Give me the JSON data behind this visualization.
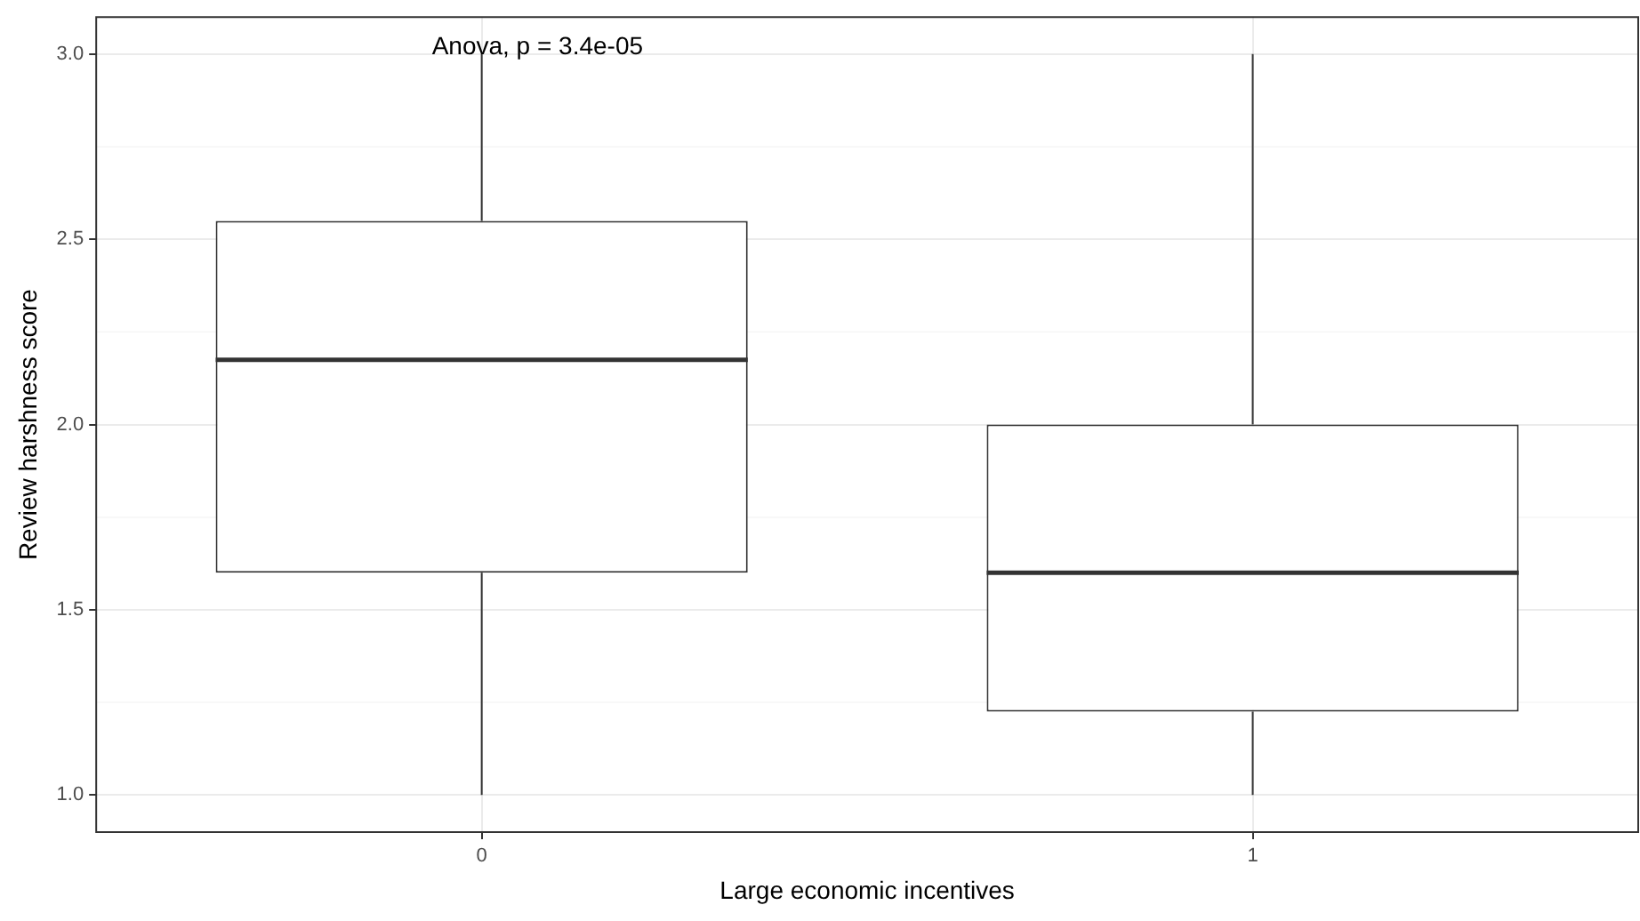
{
  "chart_data": {
    "type": "box",
    "xlabel": "Large economic incentives",
    "ylabel": "Review harshness score",
    "categories": [
      "0",
      "1"
    ],
    "boxes": [
      {
        "low": 1.0,
        "q1": 1.6,
        "median": 2.175,
        "q3": 2.55,
        "high": 3.0
      },
      {
        "low": 1.0,
        "q1": 1.225,
        "median": 1.6,
        "q3": 2.0,
        "high": 3.0
      }
    ],
    "ylim": [
      0.9,
      3.1
    ],
    "yticks": [
      {
        "value": 1,
        "label": "1.0"
      },
      {
        "value": 1.5,
        "label": "1.5"
      },
      {
        "value": 2,
        "label": "2.0"
      },
      {
        "value": 2.5,
        "label": "2.5"
      },
      {
        "value": 3,
        "label": "3.0"
      }
    ],
    "grid": true,
    "legend": false,
    "annotations": [
      "Anova, p = 3.4e-05"
    ]
  }
}
